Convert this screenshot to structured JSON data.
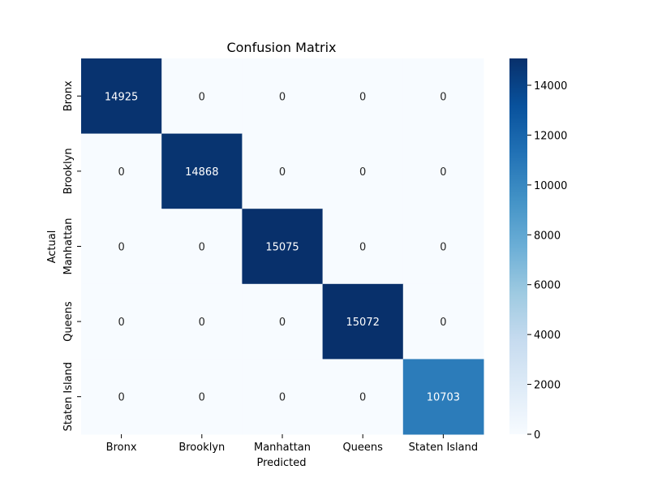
{
  "chart_data": {
    "type": "heatmap",
    "title": "Confusion Matrix",
    "xlabel": "Predicted",
    "ylabel": "Actual",
    "x_categories": [
      "Bronx",
      "Brooklyn",
      "Manhattan",
      "Queens",
      "Staten Island"
    ],
    "y_categories": [
      "Bronx",
      "Brooklyn",
      "Manhattan",
      "Queens",
      "Staten Island"
    ],
    "matrix": [
      [
        14925,
        0,
        0,
        0,
        0
      ],
      [
        0,
        14868,
        0,
        0,
        0
      ],
      [
        0,
        0,
        15075,
        0,
        0
      ],
      [
        0,
        0,
        0,
        15072,
        0
      ],
      [
        0,
        0,
        0,
        0,
        10703
      ]
    ],
    "colorbar": {
      "colormap": "Blues",
      "range": [
        0,
        15075
      ],
      "ticks": [
        0,
        2000,
        4000,
        6000,
        8000,
        10000,
        12000,
        14000
      ],
      "tick_labels": [
        "0",
        "2000",
        "4000",
        "6000",
        "8000",
        "10000",
        "12000",
        "14000"
      ]
    },
    "annotation_text_colors": {
      "on_light": "#262626",
      "on_dark": "#ffffff"
    }
  }
}
